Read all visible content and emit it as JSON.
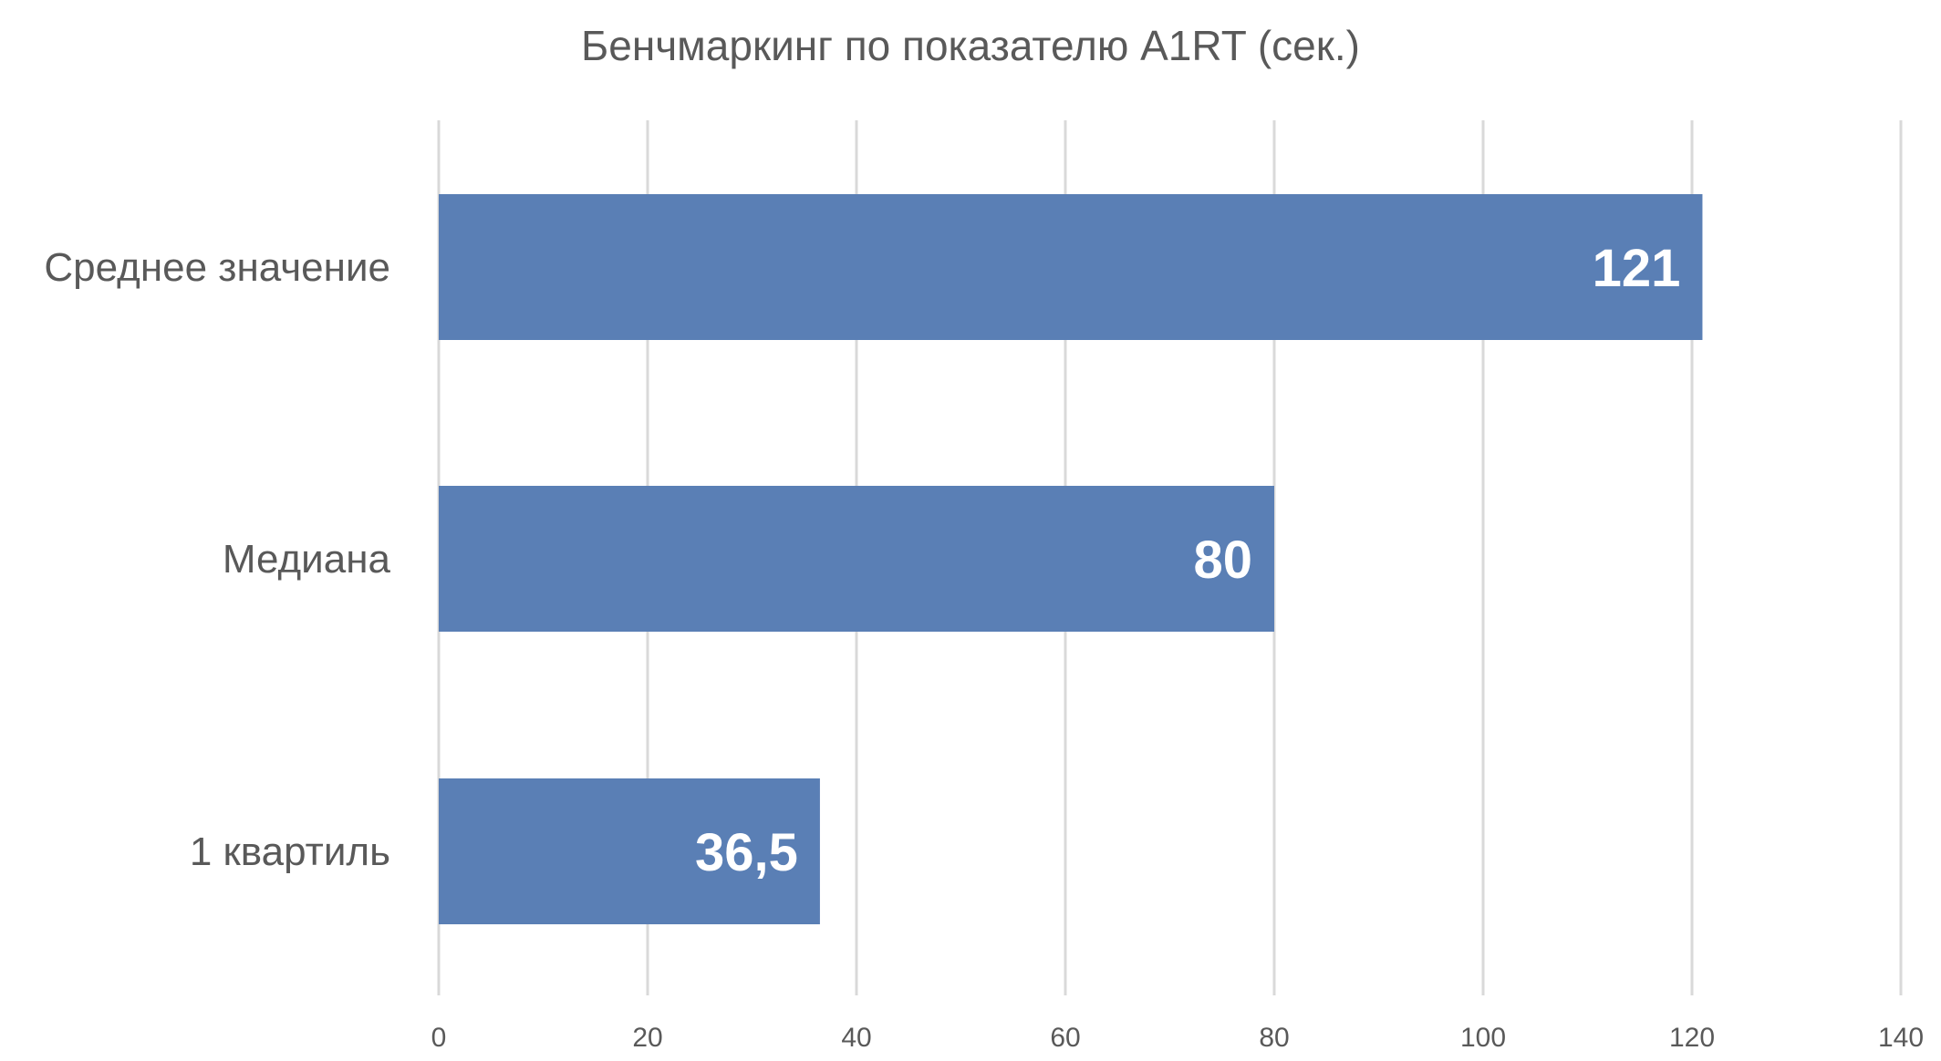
{
  "chart_data": {
    "type": "bar",
    "orientation": "horizontal",
    "title": "Бенчмаркинг по показателю A1RT (сек.)",
    "xlabel": "",
    "ylabel": "",
    "categories": [
      "Среднее значение",
      "Медиана",
      "1 квартиль"
    ],
    "values": [
      121,
      80,
      36.5
    ],
    "data_labels": [
      "121",
      "80",
      "36,5"
    ],
    "xlim": [
      0,
      140
    ],
    "ticks": [
      "0",
      "20",
      "40",
      "60",
      "80",
      "100",
      "120",
      "140"
    ],
    "grid": true,
    "legend": "none",
    "bar_color": "#5a7fb5"
  }
}
